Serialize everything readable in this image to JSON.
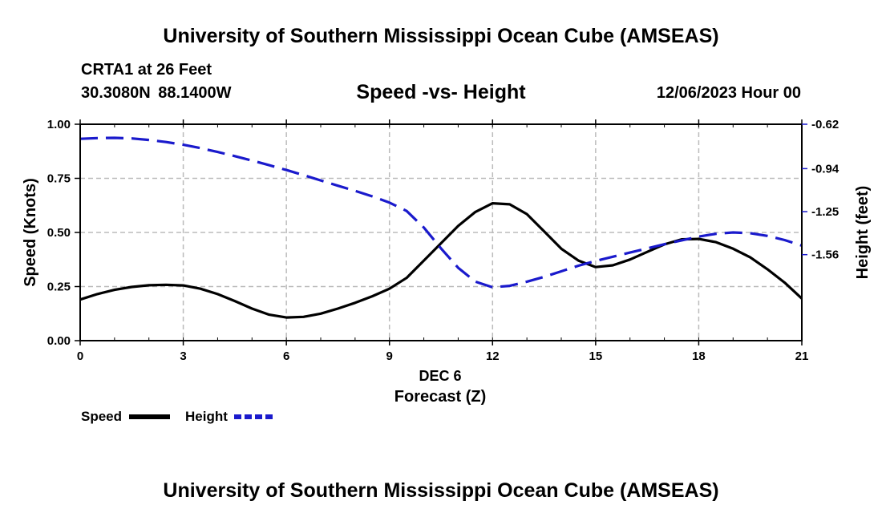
{
  "header": {
    "title": "University of Southern Mississippi Ocean Cube (AMSEAS)",
    "station": "CRTA1 at 26 Feet",
    "coordinates": "30.3080N  88.1400W",
    "chart_title": "Speed -vs- Height",
    "datetime": "12/06/2023 Hour 00"
  },
  "footer": {
    "title": "University of Southern Mississippi Ocean Cube (AMSEAS)"
  },
  "colors": {
    "speed": "#000000",
    "height": "#1a1acc",
    "grid": "#bbbbbb"
  },
  "chart_data": {
    "type": "line",
    "title": "Speed -vs- Height",
    "xlabel": "Forecast (Z)",
    "xlabel_date": "DEC 6",
    "ylabel": "Speed (Knots)",
    "ylabel_right": "Height (feet)",
    "xlim": [
      0,
      21
    ],
    "ylim": [
      0,
      1
    ],
    "ylim_right": [
      -2.18,
      -0.62
    ],
    "xticks": [
      0,
      3,
      6,
      9,
      12,
      15,
      18,
      21
    ],
    "xtick_labels": [
      "0",
      "3",
      "6",
      "9",
      "12",
      "15",
      "18",
      "21"
    ],
    "yticks": [
      0,
      0.25,
      0.5,
      0.75,
      1.0
    ],
    "ytick_labels": [
      "0.00",
      "0.25",
      "0.50",
      "0.75",
      "1.00"
    ],
    "yticks_right": [
      -0.62,
      -0.94,
      -1.25,
      -1.56
    ],
    "ytick_labels_right": [
      "-0.62",
      "-0.94",
      "-1.25",
      "-1.56"
    ],
    "grid": true,
    "legend": {
      "placement": "bottom-left",
      "entries": [
        "Speed",
        "Height"
      ]
    },
    "series": [
      {
        "name": "Speed",
        "axis": "left",
        "style": "solid",
        "x": [
          0,
          0.5,
          1,
          1.5,
          2,
          2.5,
          3,
          3.5,
          4,
          4.5,
          5,
          5.5,
          6,
          6.5,
          7,
          7.5,
          8,
          8.5,
          9,
          9.5,
          10,
          10.5,
          11,
          11.5,
          12,
          12.5,
          13,
          13.5,
          14,
          14.5,
          15,
          15.5,
          16,
          16.5,
          17,
          17.5,
          18,
          18.5,
          19,
          19.5,
          20,
          20.5,
          21
        ],
        "values": [
          0.19,
          0.215,
          0.235,
          0.248,
          0.256,
          0.258,
          0.255,
          0.24,
          0.215,
          0.183,
          0.148,
          0.12,
          0.107,
          0.11,
          0.125,
          0.148,
          0.175,
          0.205,
          0.24,
          0.29,
          0.37,
          0.45,
          0.53,
          0.595,
          0.635,
          0.63,
          0.585,
          0.505,
          0.425,
          0.37,
          0.34,
          0.348,
          0.375,
          0.41,
          0.445,
          0.468,
          0.47,
          0.455,
          0.425,
          0.385,
          0.33,
          0.268,
          0.195
        ]
      },
      {
        "name": "Height",
        "axis": "right",
        "style": "dashed",
        "x": [
          0,
          0.5,
          1,
          1.5,
          2,
          2.5,
          3,
          3.5,
          4,
          4.5,
          5,
          5.5,
          6,
          6.5,
          7,
          7.5,
          8,
          8.5,
          9,
          9.5,
          10,
          10.5,
          11,
          11.5,
          12,
          12.5,
          13,
          13.5,
          14,
          14.5,
          15,
          15.5,
          16,
          16.5,
          17,
          17.5,
          18,
          18.5,
          19,
          19.5,
          20,
          20.5,
          21
        ],
        "values": [
          -0.725,
          -0.72,
          -0.718,
          -0.722,
          -0.733,
          -0.748,
          -0.768,
          -0.792,
          -0.82,
          -0.85,
          -0.882,
          -0.915,
          -0.95,
          -0.987,
          -1.025,
          -1.063,
          -1.1,
          -1.14,
          -1.185,
          -1.245,
          -1.365,
          -1.515,
          -1.655,
          -1.755,
          -1.795,
          -1.785,
          -1.755,
          -1.72,
          -1.68,
          -1.64,
          -1.605,
          -1.575,
          -1.545,
          -1.515,
          -1.485,
          -1.457,
          -1.43,
          -1.41,
          -1.4,
          -1.405,
          -1.425,
          -1.455,
          -1.495
        ]
      }
    ]
  }
}
